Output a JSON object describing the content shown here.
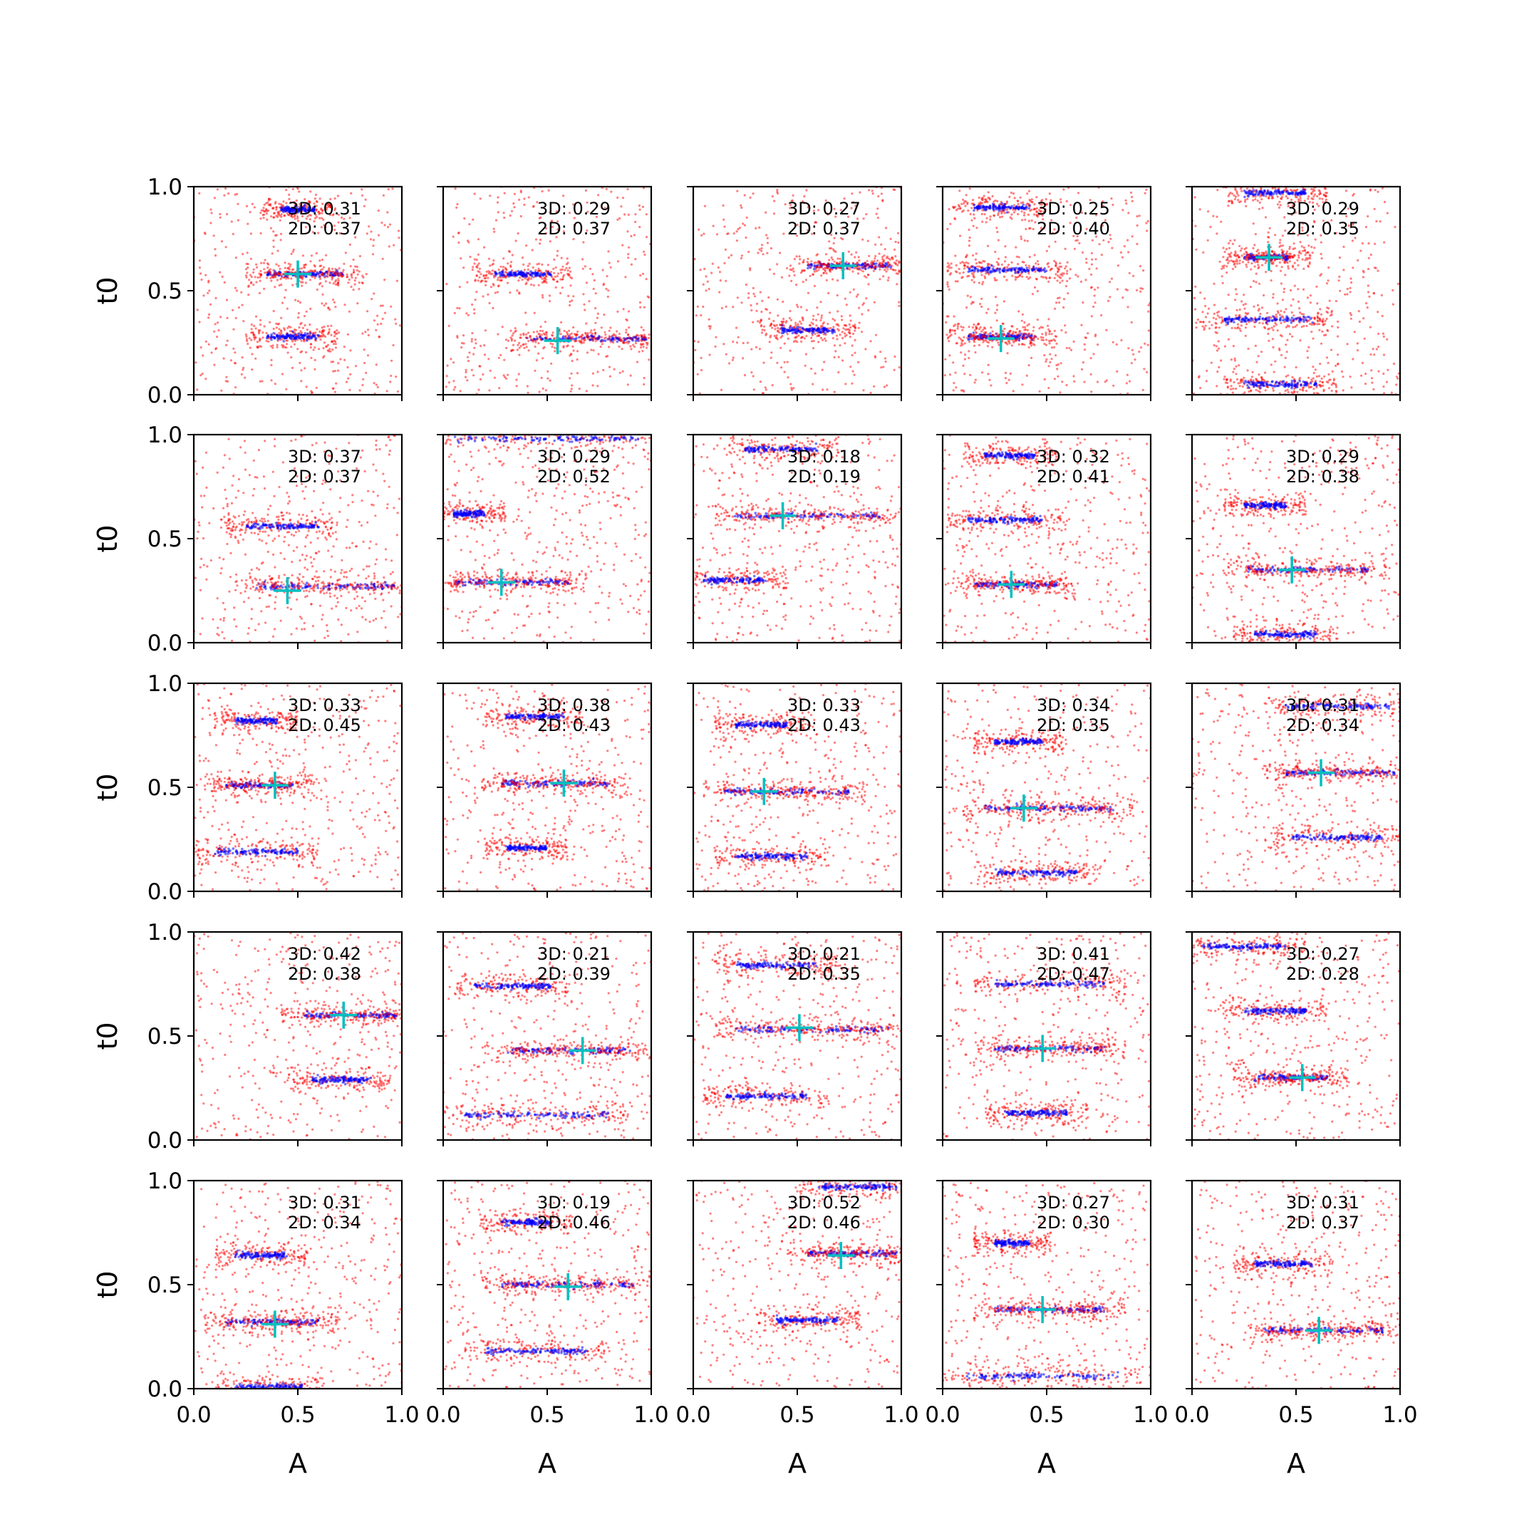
{
  "figure": {
    "xlabel": "A",
    "ylabel": "t0",
    "xlim": [
      0,
      1
    ],
    "ylim": [
      0,
      1
    ],
    "xticks": [
      "0.0",
      "0.5",
      "1.0"
    ],
    "yticks": [
      "0.0",
      "0.5",
      "1.0"
    ]
  },
  "colors": {
    "samples": "#ff0000",
    "modes": "#0000ff",
    "truth": "#00bfbf",
    "axes": "#000000"
  },
  "chart_data": [
    {
      "type": "scatter",
      "panel": [
        1,
        1
      ],
      "scores": {
        "3d": "3D: 0.31",
        "2d": "2D: 0.37"
      },
      "truth": [
        0.5,
        0.58
      ],
      "clusters": [
        {
          "t0": 0.58,
          "a": [
            0.35,
            0.72
          ]
        },
        {
          "t0": 0.28,
          "a": [
            0.35,
            0.6
          ]
        },
        {
          "t0": 0.89,
          "a": [
            0.42,
            0.58
          ]
        }
      ]
    },
    {
      "type": "scatter",
      "panel": [
        1,
        2
      ],
      "scores": {
        "3d": "3D: 0.29",
        "2d": "2D: 0.37"
      },
      "truth": [
        0.55,
        0.26
      ],
      "clusters": [
        {
          "t0": 0.58,
          "a": [
            0.25,
            0.52
          ]
        },
        {
          "t0": 0.27,
          "a": [
            0.4,
            0.98
          ]
        }
      ]
    },
    {
      "type": "scatter",
      "panel": [
        1,
        3
      ],
      "scores": {
        "3d": "3D: 0.27",
        "2d": "2D: 0.37"
      },
      "truth": [
        0.72,
        0.62
      ],
      "clusters": [
        {
          "t0": 0.62,
          "a": [
            0.55,
            0.95
          ]
        },
        {
          "t0": 0.31,
          "a": [
            0.42,
            0.68
          ]
        }
      ]
    },
    {
      "type": "scatter",
      "panel": [
        1,
        4
      ],
      "scores": {
        "3d": "3D: 0.25",
        "2d": "2D: 0.40"
      },
      "truth": [
        0.28,
        0.27
      ],
      "clusters": [
        {
          "t0": 0.9,
          "a": [
            0.15,
            0.42
          ]
        },
        {
          "t0": 0.6,
          "a": [
            0.12,
            0.5
          ]
        },
        {
          "t0": 0.28,
          "a": [
            0.12,
            0.45
          ]
        }
      ]
    },
    {
      "type": "scatter",
      "panel": [
        1,
        5
      ],
      "scores": {
        "3d": "3D: 0.29",
        "2d": "2D: 0.35"
      },
      "truth": [
        0.37,
        0.66
      ],
      "clusters": [
        {
          "t0": 0.97,
          "a": [
            0.25,
            0.55
          ]
        },
        {
          "t0": 0.66,
          "a": [
            0.25,
            0.48
          ]
        },
        {
          "t0": 0.36,
          "a": [
            0.15,
            0.58
          ]
        },
        {
          "t0": 0.05,
          "a": [
            0.25,
            0.6
          ]
        }
      ]
    },
    {
      "type": "scatter",
      "panel": [
        2,
        1
      ],
      "scores": {
        "3d": "3D: 0.37",
        "2d": "2D: 0.37"
      },
      "truth": [
        0.45,
        0.25
      ],
      "clusters": [
        {
          "t0": 0.56,
          "a": [
            0.25,
            0.6
          ]
        },
        {
          "t0": 0.27,
          "a": [
            0.3,
            0.98
          ]
        }
      ]
    },
    {
      "type": "scatter",
      "panel": [
        2,
        2
      ],
      "scores": {
        "3d": "3D: 0.29",
        "2d": "2D: 0.52"
      },
      "truth": [
        0.28,
        0.29
      ],
      "clusters": [
        {
          "t0": 0.98,
          "a": [
            0.05,
            0.95
          ]
        },
        {
          "t0": 0.29,
          "a": [
            0.05,
            0.6
          ]
        },
        {
          "t0": 0.62,
          "a": [
            0.05,
            0.2
          ]
        }
      ]
    },
    {
      "type": "scatter",
      "panel": [
        2,
        3
      ],
      "scores": {
        "3d": "3D: 0.18",
        "2d": "2D: 0.19"
      },
      "truth": [
        0.43,
        0.61
      ],
      "clusters": [
        {
          "t0": 0.93,
          "a": [
            0.25,
            0.6
          ]
        },
        {
          "t0": 0.61,
          "a": [
            0.2,
            0.9
          ]
        },
        {
          "t0": 0.3,
          "a": [
            0.05,
            0.35
          ]
        }
      ]
    },
    {
      "type": "scatter",
      "panel": [
        2,
        4
      ],
      "scores": {
        "3d": "3D: 0.32",
        "2d": "2D: 0.41"
      },
      "truth": [
        0.33,
        0.28
      ],
      "clusters": [
        {
          "t0": 0.9,
          "a": [
            0.2,
            0.45
          ]
        },
        {
          "t0": 0.59,
          "a": [
            0.12,
            0.48
          ]
        },
        {
          "t0": 0.28,
          "a": [
            0.15,
            0.55
          ]
        }
      ]
    },
    {
      "type": "scatter",
      "panel": [
        2,
        5
      ],
      "scores": {
        "3d": "3D: 0.29",
        "2d": "2D: 0.38"
      },
      "truth": [
        0.48,
        0.35
      ],
      "clusters": [
        {
          "t0": 0.66,
          "a": [
            0.25,
            0.45
          ]
        },
        {
          "t0": 0.35,
          "a": [
            0.25,
            0.85
          ]
        },
        {
          "t0": 0.04,
          "a": [
            0.3,
            0.6
          ]
        }
      ]
    },
    {
      "type": "scatter",
      "panel": [
        3,
        1
      ],
      "scores": {
        "3d": "3D: 0.33",
        "2d": "2D: 0.45"
      },
      "truth": [
        0.39,
        0.51
      ],
      "clusters": [
        {
          "t0": 0.82,
          "a": [
            0.2,
            0.4
          ]
        },
        {
          "t0": 0.51,
          "a": [
            0.15,
            0.48
          ]
        },
        {
          "t0": 0.19,
          "a": [
            0.1,
            0.5
          ]
        }
      ]
    },
    {
      "type": "scatter",
      "panel": [
        3,
        2
      ],
      "scores": {
        "3d": "3D: 0.38",
        "2d": "2D: 0.43"
      },
      "truth": [
        0.58,
        0.52
      ],
      "clusters": [
        {
          "t0": 0.84,
          "a": [
            0.3,
            0.58
          ]
        },
        {
          "t0": 0.52,
          "a": [
            0.28,
            0.8
          ]
        },
        {
          "t0": 0.21,
          "a": [
            0.3,
            0.5
          ]
        }
      ]
    },
    {
      "type": "scatter",
      "panel": [
        3,
        3
      ],
      "scores": {
        "3d": "3D: 0.33",
        "2d": "2D: 0.43"
      },
      "truth": [
        0.34,
        0.48
      ],
      "clusters": [
        {
          "t0": 0.8,
          "a": [
            0.2,
            0.45
          ]
        },
        {
          "t0": 0.48,
          "a": [
            0.15,
            0.75
          ]
        },
        {
          "t0": 0.17,
          "a": [
            0.2,
            0.55
          ]
        }
      ]
    },
    {
      "type": "scatter",
      "panel": [
        3,
        4
      ],
      "scores": {
        "3d": "3D: 0.34",
        "2d": "2D: 0.35"
      },
      "truth": [
        0.39,
        0.4
      ],
      "clusters": [
        {
          "t0": 0.72,
          "a": [
            0.25,
            0.48
          ]
        },
        {
          "t0": 0.4,
          "a": [
            0.2,
            0.82
          ]
        },
        {
          "t0": 0.09,
          "a": [
            0.25,
            0.65
          ]
        }
      ]
    },
    {
      "type": "scatter",
      "panel": [
        3,
        5
      ],
      "scores": {
        "3d": "3D: 0.31",
        "2d": "2D: 0.34"
      },
      "truth": [
        0.62,
        0.57
      ],
      "clusters": [
        {
          "t0": 0.89,
          "a": [
            0.45,
            0.95
          ]
        },
        {
          "t0": 0.57,
          "a": [
            0.45,
            0.98
          ]
        },
        {
          "t0": 0.26,
          "a": [
            0.48,
            0.92
          ]
        }
      ]
    },
    {
      "type": "scatter",
      "panel": [
        4,
        1
      ],
      "scores": {
        "3d": "3D: 0.42",
        "2d": "2D: 0.38"
      },
      "truth": [
        0.72,
        0.6
      ],
      "clusters": [
        {
          "t0": 0.6,
          "a": [
            0.52,
            0.98
          ]
        },
        {
          "t0": 0.29,
          "a": [
            0.55,
            0.85
          ]
        }
      ]
    },
    {
      "type": "scatter",
      "panel": [
        4,
        2
      ],
      "scores": {
        "3d": "3D: 0.21",
        "2d": "2D: 0.39"
      },
      "truth": [
        0.67,
        0.43
      ],
      "clusters": [
        {
          "t0": 0.74,
          "a": [
            0.15,
            0.52
          ]
        },
        {
          "t0": 0.43,
          "a": [
            0.3,
            0.9
          ]
        },
        {
          "t0": 0.12,
          "a": [
            0.1,
            0.8
          ]
        }
      ]
    },
    {
      "type": "scatter",
      "panel": [
        4,
        3
      ],
      "scores": {
        "3d": "3D: 0.21",
        "2d": "2D: 0.35"
      },
      "truth": [
        0.51,
        0.54
      ],
      "clusters": [
        {
          "t0": 0.84,
          "a": [
            0.2,
            0.6
          ]
        },
        {
          "t0": 0.53,
          "a": [
            0.2,
            0.95
          ]
        },
        {
          "t0": 0.21,
          "a": [
            0.15,
            0.55
          ]
        }
      ]
    },
    {
      "type": "scatter",
      "panel": [
        4,
        4
      ],
      "scores": {
        "3d": "3D: 0.41",
        "2d": "2D: 0.47"
      },
      "truth": [
        0.48,
        0.44
      ],
      "clusters": [
        {
          "t0": 0.75,
          "a": [
            0.25,
            0.78
          ]
        },
        {
          "t0": 0.44,
          "a": [
            0.25,
            0.78
          ]
        },
        {
          "t0": 0.13,
          "a": [
            0.3,
            0.6
          ]
        }
      ]
    },
    {
      "type": "scatter",
      "panel": [
        4,
        5
      ],
      "scores": {
        "3d": "3D: 0.27",
        "2d": "2D: 0.28"
      },
      "truth": [
        0.53,
        0.3
      ],
      "clusters": [
        {
          "t0": 0.62,
          "a": [
            0.25,
            0.55
          ]
        },
        {
          "t0": 0.3,
          "a": [
            0.3,
            0.65
          ]
        },
        {
          "t0": 0.93,
          "a": [
            0.05,
            0.45
          ]
        }
      ]
    },
    {
      "type": "scatter",
      "panel": [
        5,
        1
      ],
      "scores": {
        "3d": "3D: 0.31",
        "2d": "2D: 0.34"
      },
      "truth": [
        0.39,
        0.31
      ],
      "clusters": [
        {
          "t0": 0.64,
          "a": [
            0.2,
            0.45
          ]
        },
        {
          "t0": 0.32,
          "a": [
            0.15,
            0.6
          ]
        },
        {
          "t0": 0.01,
          "a": [
            0.2,
            0.52
          ]
        }
      ]
    },
    {
      "type": "scatter",
      "panel": [
        5,
        2
      ],
      "scores": {
        "3d": "3D: 0.19",
        "2d": "2D: 0.46"
      },
      "truth": [
        0.6,
        0.49
      ],
      "clusters": [
        {
          "t0": 0.8,
          "a": [
            0.28,
            0.52
          ]
        },
        {
          "t0": 0.5,
          "a": [
            0.28,
            0.92
          ]
        },
        {
          "t0": 0.18,
          "a": [
            0.2,
            0.7
          ]
        }
      ]
    },
    {
      "type": "scatter",
      "panel": [
        5,
        3
      ],
      "scores": {
        "3d": "3D: 0.52",
        "2d": "2D: 0.46"
      },
      "truth": [
        0.71,
        0.64
      ],
      "clusters": [
        {
          "t0": 0.97,
          "a": [
            0.6,
            0.98
          ]
        },
        {
          "t0": 0.65,
          "a": [
            0.55,
            0.98
          ]
        },
        {
          "t0": 0.33,
          "a": [
            0.4,
            0.7
          ]
        }
      ]
    },
    {
      "type": "scatter",
      "panel": [
        5,
        4
      ],
      "scores": {
        "3d": "3D: 0.27",
        "2d": "2D: 0.30"
      },
      "truth": [
        0.48,
        0.38
      ],
      "clusters": [
        {
          "t0": 0.7,
          "a": [
            0.25,
            0.42
          ]
        },
        {
          "t0": 0.38,
          "a": [
            0.25,
            0.78
          ]
        },
        {
          "t0": 0.06,
          "a": [
            0.1,
            0.85
          ]
        }
      ]
    },
    {
      "type": "scatter",
      "panel": [
        5,
        5
      ],
      "scores": {
        "3d": "3D: 0.31",
        "2d": "2D: 0.37"
      },
      "truth": [
        0.61,
        0.28
      ],
      "clusters": [
        {
          "t0": 0.6,
          "a": [
            0.3,
            0.58
          ]
        },
        {
          "t0": 0.28,
          "a": [
            0.35,
            0.92
          ]
        }
      ]
    }
  ]
}
